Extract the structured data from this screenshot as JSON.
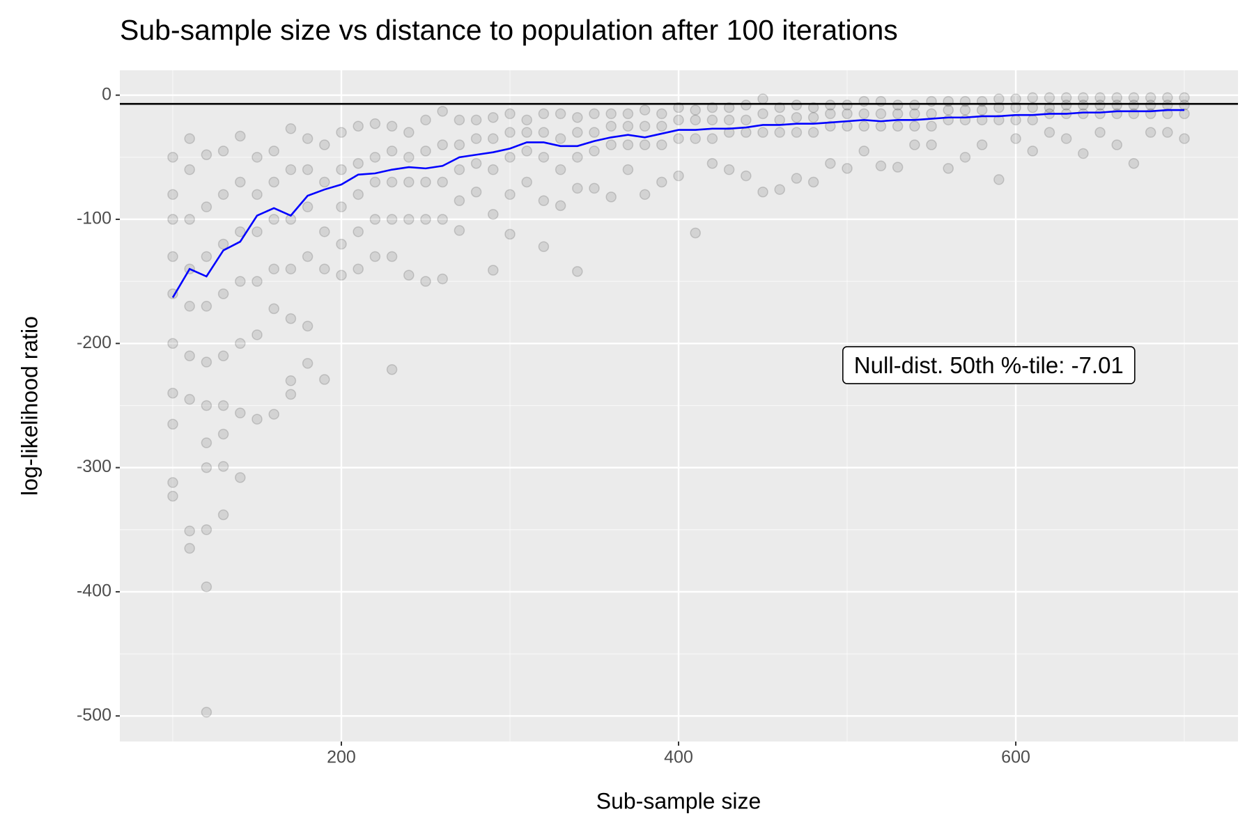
{
  "chart_data": {
    "type": "scatter",
    "title": "Sub-sample size vs distance to population after 100 iterations",
    "x_label": "Sub-sample size",
    "y_label": "log-likelihood ratio",
    "xlim": [
      68.6,
      731.8
    ],
    "ylim": [
      -520.6,
      20
    ],
    "xticks": [
      200,
      400,
      600
    ],
    "yticks": [
      0,
      -100,
      -200,
      -300,
      -400,
      -500
    ],
    "grid": true,
    "points": {
      "color": "#000000",
      "groups": [
        {
          "x": 100,
          "values": [
            -50,
            -80,
            -100,
            -130,
            -160,
            -200,
            -240,
            -265,
            -312,
            -323
          ]
        },
        {
          "x": 110,
          "values": [
            -35,
            -60,
            -100,
            -140,
            -170,
            -210,
            -245,
            -351,
            -365
          ]
        },
        {
          "x": 120,
          "values": [
            -48,
            -90,
            -130,
            -170,
            -215,
            -250,
            -280,
            -300,
            -350,
            -396,
            -497
          ]
        },
        {
          "x": 130,
          "values": [
            -45,
            -80,
            -120,
            -160,
            -210,
            -250,
            -273,
            -299,
            -338
          ]
        },
        {
          "x": 140,
          "values": [
            -33,
            -70,
            -110,
            -150,
            -200,
            -256,
            -308
          ]
        },
        {
          "x": 150,
          "values": [
            -50,
            -80,
            -110,
            -150,
            -193,
            -261
          ]
        },
        {
          "x": 160,
          "values": [
            -45,
            -70,
            -100,
            -140,
            -172,
            -257
          ]
        },
        {
          "x": 170,
          "values": [
            -27,
            -60,
            -100,
            -140,
            -180,
            -230,
            -241
          ]
        },
        {
          "x": 180,
          "values": [
            -35,
            -60,
            -90,
            -130,
            -186,
            -216
          ]
        },
        {
          "x": 190,
          "values": [
            -40,
            -70,
            -110,
            -140,
            -229
          ]
        },
        {
          "x": 200,
          "values": [
            -30,
            -60,
            -90,
            -120,
            -145
          ]
        },
        {
          "x": 210,
          "values": [
            -25,
            -55,
            -80,
            -110,
            -140
          ]
        },
        {
          "x": 220,
          "values": [
            -23,
            -50,
            -70,
            -100,
            -130
          ]
        },
        {
          "x": 230,
          "values": [
            -25,
            -45,
            -70,
            -100,
            -130,
            -221
          ]
        },
        {
          "x": 240,
          "values": [
            -30,
            -50,
            -70,
            -100,
            -145
          ]
        },
        {
          "x": 250,
          "values": [
            -20,
            -45,
            -70,
            -100,
            -150
          ]
        },
        {
          "x": 260,
          "values": [
            -13,
            -40,
            -70,
            -100,
            -148
          ]
        },
        {
          "x": 270,
          "values": [
            -20,
            -40,
            -60,
            -85,
            -109
          ]
        },
        {
          "x": 280,
          "values": [
            -20,
            -35,
            -55,
            -78
          ]
        },
        {
          "x": 290,
          "values": [
            -18,
            -35,
            -60,
            -96,
            -141
          ]
        },
        {
          "x": 300,
          "values": [
            -15,
            -30,
            -50,
            -80,
            -112
          ]
        },
        {
          "x": 310,
          "values": [
            -20,
            -30,
            -45,
            -70
          ]
        },
        {
          "x": 320,
          "values": [
            -15,
            -30,
            -50,
            -85,
            -122
          ]
        },
        {
          "x": 330,
          "values": [
            -15,
            -35,
            -60,
            -89
          ]
        },
        {
          "x": 340,
          "values": [
            -18,
            -30,
            -50,
            -75,
            -142
          ]
        },
        {
          "x": 350,
          "values": [
            -15,
            -30,
            -45,
            -75
          ]
        },
        {
          "x": 360,
          "values": [
            -15,
            -25,
            -40,
            -82
          ]
        },
        {
          "x": 370,
          "values": [
            -15,
            -25,
            -40,
            -60
          ]
        },
        {
          "x": 380,
          "values": [
            -12,
            -25,
            -40,
            -80
          ]
        },
        {
          "x": 390,
          "values": [
            -15,
            -25,
            -40,
            -70
          ]
        },
        {
          "x": 400,
          "values": [
            -10,
            -20,
            -35,
            -65
          ]
        },
        {
          "x": 410,
          "values": [
            -12,
            -20,
            -35,
            -111
          ]
        },
        {
          "x": 420,
          "values": [
            -10,
            -20,
            -35,
            -55
          ]
        },
        {
          "x": 430,
          "values": [
            -10,
            -20,
            -30,
            -60
          ]
        },
        {
          "x": 440,
          "values": [
            -8,
            -20,
            -30,
            -65
          ]
        },
        {
          "x": 450,
          "values": [
            -3,
            -15,
            -30,
            -78
          ]
        },
        {
          "x": 460,
          "values": [
            -10,
            -20,
            -30,
            -76
          ]
        },
        {
          "x": 470,
          "values": [
            -8,
            -18,
            -30,
            -67
          ]
        },
        {
          "x": 480,
          "values": [
            -10,
            -18,
            -30,
            -70
          ]
        },
        {
          "x": 490,
          "values": [
            -8,
            -15,
            -25,
            -55
          ]
        },
        {
          "x": 500,
          "values": [
            -8,
            -15,
            -25,
            -59
          ]
        },
        {
          "x": 510,
          "values": [
            -5,
            -15,
            -25,
            -45
          ]
        },
        {
          "x": 520,
          "values": [
            -5,
            -15,
            -25,
            -57
          ]
        },
        {
          "x": 530,
          "values": [
            -8,
            -15,
            -25,
            -58
          ]
        },
        {
          "x": 540,
          "values": [
            -8,
            -15,
            -25,
            -40
          ]
        },
        {
          "x": 550,
          "values": [
            -5,
            -15,
            -25,
            -40
          ]
        },
        {
          "x": 560,
          "values": [
            -5,
            -12,
            -20,
            -59
          ]
        },
        {
          "x": 570,
          "values": [
            -5,
            -12,
            -20,
            -50
          ]
        },
        {
          "x": 580,
          "values": [
            -5,
            -12,
            -20,
            -40
          ]
        },
        {
          "x": 590,
          "values": [
            -3,
            -10,
            -20,
            -68
          ]
        },
        {
          "x": 600,
          "values": [
            -3,
            -10,
            -20,
            -35
          ]
        },
        {
          "x": 610,
          "values": [
            -2,
            -10,
            -20,
            -45
          ]
        },
        {
          "x": 620,
          "values": [
            -2,
            -10,
            -15,
            -30
          ]
        },
        {
          "x": 630,
          "values": [
            -2,
            -8,
            -15,
            -35
          ]
        },
        {
          "x": 640,
          "values": [
            -2,
            -8,
            -15,
            -47
          ]
        },
        {
          "x": 650,
          "values": [
            -2,
            -8,
            -15,
            -30
          ]
        },
        {
          "x": 660,
          "values": [
            -2,
            -8,
            -15,
            -40
          ]
        },
        {
          "x": 670,
          "values": [
            -2,
            -8,
            -15,
            -55
          ]
        },
        {
          "x": 680,
          "values": [
            -2,
            -8,
            -15,
            -30
          ]
        },
        {
          "x": 690,
          "values": [
            -2,
            -8,
            -15,
            -30
          ]
        },
        {
          "x": 700,
          "values": [
            -2,
            -8,
            -15,
            -35
          ]
        }
      ]
    },
    "median_line": {
      "color": "#0000ff",
      "x": [
        100,
        110,
        120,
        130,
        140,
        150,
        160,
        170,
        180,
        190,
        200,
        210,
        220,
        230,
        240,
        250,
        260,
        270,
        280,
        290,
        300,
        310,
        320,
        330,
        340,
        350,
        360,
        370,
        380,
        390,
        400,
        410,
        420,
        430,
        440,
        450,
        460,
        470,
        480,
        490,
        500,
        510,
        520,
        530,
        540,
        550,
        560,
        570,
        580,
        590,
        600,
        610,
        620,
        630,
        640,
        650,
        660,
        670,
        680,
        690,
        700
      ],
      "values": [
        -163,
        -140,
        -146,
        -125,
        -118,
        -97,
        -91,
        -97,
        -81,
        -76,
        -72,
        -64,
        -63,
        -60,
        -58,
        -59,
        -57,
        -50,
        -48,
        -46,
        -43,
        -38,
        -38,
        -41,
        -41,
        -37,
        -34,
        -32,
        -34,
        -31,
        -28,
        -28,
        -27,
        -27,
        -26,
        -24,
        -24,
        -23,
        -23,
        -22,
        -21,
        -20,
        -21,
        -20,
        -20,
        -19,
        -18,
        -18,
        -17,
        -17,
        -16,
        -16,
        -15,
        -15,
        -14,
        -14,
        -13,
        -13,
        -13,
        -12,
        -12
      ]
    },
    "reference_line": {
      "color": "#000000",
      "value": -7.01
    },
    "annotation": {
      "text": "Null-dist. 50th %-tile: -7.01",
      "x": 584,
      "y": -219
    }
  }
}
